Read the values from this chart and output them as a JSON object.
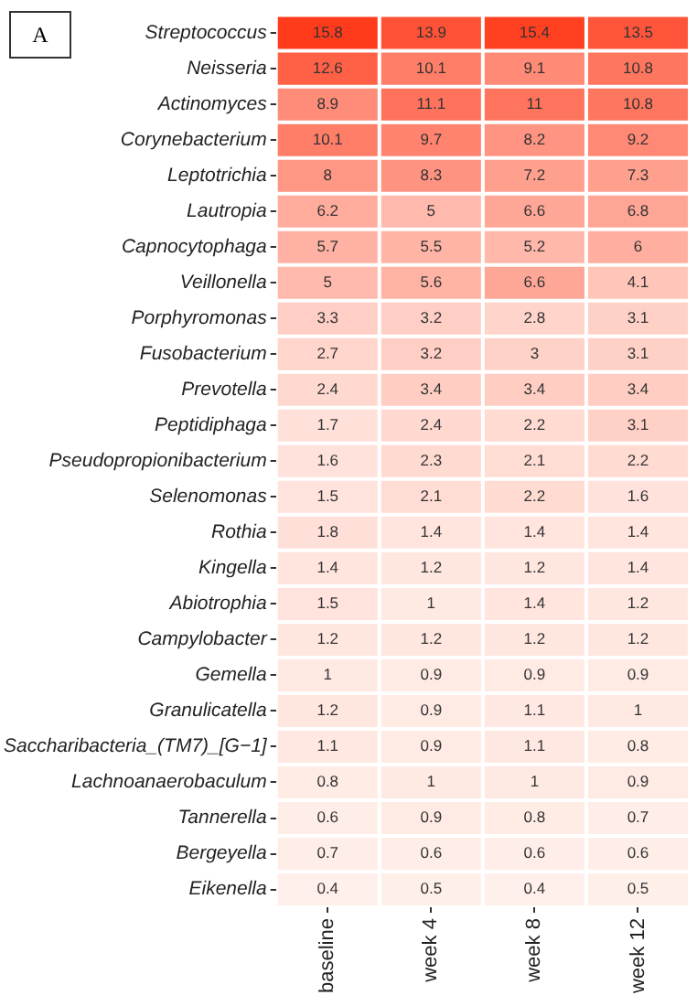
{
  "chart_data": {
    "type": "heatmap",
    "annotations": [
      "A"
    ],
    "color": "#ff3b1c",
    "categories": [
      "baseline",
      "week 4",
      "week 8",
      "week 12"
    ],
    "y_categories": [
      "Streptococcus",
      "Neisseria",
      "Actinomyces",
      "Corynebacterium",
      "Leptotrichia",
      "Lautropia",
      "Capnocytophaga",
      "Veillonella",
      "Porphyromonas",
      "Fusobacterium",
      "Prevotella",
      "Peptidiphaga",
      "Pseudopropionibacterium",
      "Selenomonas",
      "Rothia",
      "Kingella",
      "Abiotrophia",
      "Campylobacter",
      "Gemella",
      "Granulicatella",
      "Saccharibacteria_(TM7)_[G−1]",
      "Lachnoanaerobaculum",
      "Tannerella",
      "Bergeyella",
      "Eikenella"
    ],
    "cells": [
      [
        15.8,
        13.9,
        15.4,
        13.5
      ],
      [
        12.6,
        10.1,
        9.1,
        10.8
      ],
      [
        8.9,
        11.1,
        11,
        10.8
      ],
      [
        10.1,
        9.7,
        8.2,
        9.2
      ],
      [
        8,
        8.3,
        7.2,
        7.3
      ],
      [
        6.2,
        5,
        6.6,
        6.8
      ],
      [
        5.7,
        5.5,
        5.2,
        6
      ],
      [
        5,
        5.6,
        6.6,
        4.1
      ],
      [
        3.3,
        3.2,
        2.8,
        3.1
      ],
      [
        2.7,
        3.2,
        3,
        3.1
      ],
      [
        2.4,
        3.4,
        3.4,
        3.4
      ],
      [
        1.7,
        2.4,
        2.2,
        3.1
      ],
      [
        1.6,
        2.3,
        2.1,
        2.2
      ],
      [
        1.5,
        2.1,
        2.2,
        1.6
      ],
      [
        1.8,
        1.4,
        1.4,
        1.4
      ],
      [
        1.4,
        1.2,
        1.2,
        1.4
      ],
      [
        1.5,
        1,
        1.4,
        1.2
      ],
      [
        1.2,
        1.2,
        1.2,
        1.2
      ],
      [
        1,
        0.9,
        0.9,
        0.9
      ],
      [
        1.2,
        0.9,
        1.1,
        1
      ],
      [
        1.1,
        0.9,
        1.1,
        0.8
      ],
      [
        0.8,
        1,
        1,
        0.9
      ],
      [
        0.6,
        0.9,
        0.8,
        0.7
      ],
      [
        0.7,
        0.6,
        0.6,
        0.6
      ],
      [
        0.4,
        0.5,
        0.4,
        0.5
      ]
    ],
    "data_labels": true
  }
}
